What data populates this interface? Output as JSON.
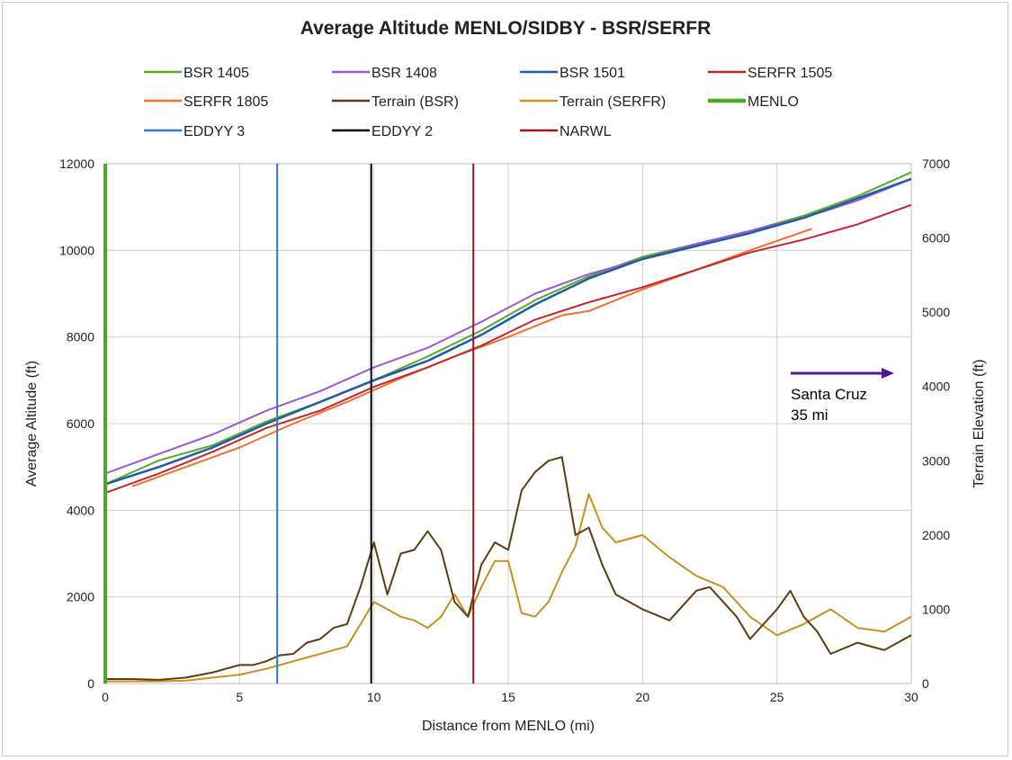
{
  "chart_data": {
    "type": "line",
    "title": "Average Altitude MENLO/SIDBY - BSR/SERFR",
    "xlabel": "Distance from MENLO (mi)",
    "ylabel": "Average Altitude (ft)",
    "y2label": "Terrain Elevation (ft)",
    "xlim": [
      0,
      30
    ],
    "ylim": [
      0,
      12000
    ],
    "y2lim": [
      0,
      7000
    ],
    "xticks": [
      "0",
      "5",
      "10",
      "15",
      "20",
      "25",
      "30"
    ],
    "yticks": [
      "0",
      "2000",
      "4000",
      "6000",
      "8000",
      "10000",
      "12000"
    ],
    "y2ticks": [
      "0",
      "1000",
      "2000",
      "3000",
      "4000",
      "5000",
      "6000",
      "7000"
    ],
    "grid": true,
    "legend_position": "top",
    "annotation": {
      "line1": "Santa Cruz",
      "line2": "35 mi",
      "arrow": "right"
    },
    "series": [
      {
        "name": "BSR 1405",
        "color": "#5aa830",
        "width": 2,
        "axis": "left",
        "x": [
          0,
          2,
          4,
          6,
          8,
          10,
          12,
          14,
          16,
          18,
          20,
          22,
          24,
          26,
          28,
          30
        ],
        "y": [
          4600,
          5150,
          5500,
          6050,
          6500,
          7000,
          7550,
          8150,
          8850,
          9400,
          9850,
          10150,
          10450,
          10800,
          11250,
          11800
        ]
      },
      {
        "name": "BSR 1408",
        "color": "#9b59d0",
        "width": 2,
        "axis": "left",
        "x": [
          0,
          2,
          4,
          6,
          8,
          10,
          12,
          14,
          16,
          18,
          20,
          22,
          24,
          26,
          28,
          30
        ],
        "y": [
          4850,
          5300,
          5750,
          6300,
          6750,
          7300,
          7750,
          8350,
          9000,
          9450,
          9800,
          10150,
          10450,
          10750,
          11150,
          11650
        ]
      },
      {
        "name": "BSR 1501",
        "color": "#1f5aa6",
        "width": 2.5,
        "axis": "left",
        "x": [
          0,
          2,
          4,
          6,
          8,
          10,
          12,
          14,
          16,
          18,
          20,
          22,
          24,
          26,
          28,
          30
        ],
        "y": [
          4600,
          5000,
          5450,
          6000,
          6500,
          7000,
          7450,
          8050,
          8750,
          9350,
          9800,
          10100,
          10400,
          10750,
          11200,
          11650
        ]
      },
      {
        "name": "SERFR 1505",
        "color": "#c0272d",
        "width": 2,
        "axis": "left",
        "x": [
          0,
          2,
          4,
          6,
          8,
          10,
          12,
          14,
          16,
          18,
          20,
          22,
          24,
          26,
          28,
          30
        ],
        "y": [
          4400,
          4850,
          5350,
          5900,
          6300,
          6850,
          7300,
          7800,
          8400,
          8800,
          9150,
          9550,
          9950,
          10250,
          10600,
          11050
        ]
      },
      {
        "name": "SERFR 1805",
        "color": "#f07030",
        "width": 2,
        "axis": "left",
        "x": [
          1,
          3,
          5,
          7,
          9,
          11,
          13,
          15,
          17,
          18,
          20,
          22,
          24,
          26.3
        ],
        "y": [
          4550,
          5000,
          5450,
          6000,
          6500,
          7050,
          7550,
          8000,
          8500,
          8600,
          9100,
          9550,
          10000,
          10500
        ]
      },
      {
        "name": "Terrain (BSR)",
        "color": "#5c3d10",
        "width": 2,
        "axis": "right",
        "x": [
          0,
          1,
          2,
          3,
          4,
          5,
          5.5,
          6,
          6.5,
          7,
          7.5,
          8,
          8.5,
          9,
          9.5,
          10,
          10.5,
          11,
          11.5,
          12,
          12.5,
          13,
          13.5,
          14,
          14.5,
          15,
          15.5,
          16,
          16.5,
          17,
          17.5,
          18,
          18.5,
          19,
          20,
          21,
          22,
          22.5,
          23,
          23.5,
          24,
          25,
          25.5,
          26,
          26.5,
          27,
          28,
          29,
          30
        ],
        "y": [
          60,
          60,
          50,
          80,
          150,
          250,
          250,
          300,
          380,
          400,
          550,
          600,
          750,
          800,
          1300,
          1900,
          1200,
          1750,
          1800,
          2050,
          1800,
          1100,
          900,
          1600,
          1900,
          1800,
          2600,
          2850,
          3000,
          3050,
          2000,
          2100,
          1600,
          1200,
          1000,
          850,
          1250,
          1300,
          1100,
          900,
          600,
          1000,
          1250,
          900,
          700,
          400,
          550,
          450,
          650
        ]
      },
      {
        "name": "Terrain (SERFR)",
        "color": "#c89020",
        "width": 2,
        "axis": "right",
        "x": [
          0,
          1,
          2,
          3,
          4,
          5,
          6,
          7,
          8,
          9,
          10,
          10.5,
          11,
          11.5,
          12,
          12.5,
          13,
          13.5,
          14,
          14.5,
          15,
          15.5,
          16,
          16.5,
          17,
          17.5,
          18,
          18.5,
          19,
          20,
          21,
          22,
          23,
          24,
          25,
          26,
          27,
          28,
          29,
          30
        ],
        "y": [
          30,
          30,
          30,
          40,
          80,
          120,
          200,
          300,
          400,
          500,
          1100,
          1000,
          900,
          850,
          750,
          900,
          1200,
          900,
          1300,
          1650,
          1650,
          950,
          900,
          1100,
          1500,
          1850,
          2550,
          2100,
          1900,
          2000,
          1700,
          1450,
          1300,
          900,
          650,
          800,
          1000,
          750,
          700,
          900
        ]
      },
      {
        "name": "MENLO",
        "color": "#4caa22",
        "width": 4,
        "axis": "left",
        "vertical_at": 0
      },
      {
        "name": "EDDYY 3",
        "color": "#2f7bc8",
        "width": 2,
        "axis": "left",
        "vertical_at": 6.4
      },
      {
        "name": "EDDYY 2",
        "color": "#000000",
        "width": 2,
        "axis": "left",
        "vertical_at": 9.9
      },
      {
        "name": "NARWL",
        "color": "#a0181e",
        "width": 2,
        "axis": "left",
        "vertical_at": 13.7
      }
    ]
  }
}
